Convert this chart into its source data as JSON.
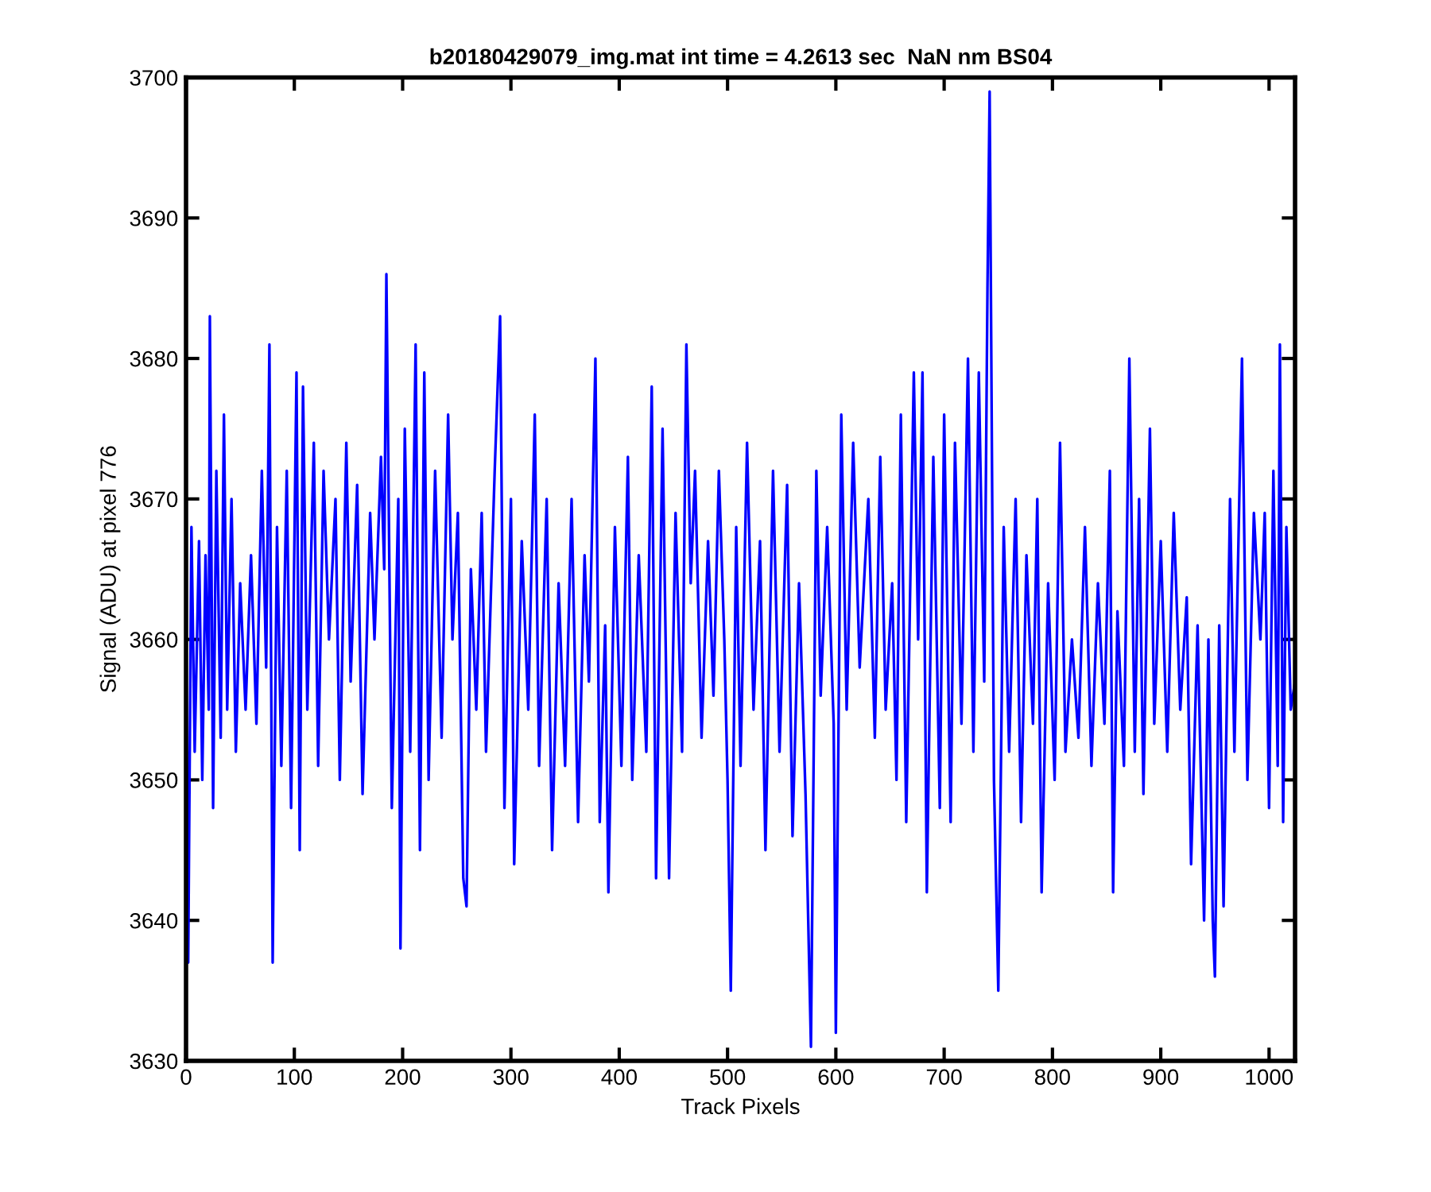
{
  "chart_data": {
    "type": "line",
    "title": "b20180429079_img.mat int time = 4.2613 sec  NaN nm BS04",
    "xlabel": "Track Pixels",
    "ylabel": "Signal (ADU) at pixel 776",
    "xlim": [
      0,
      1024
    ],
    "ylim": [
      3630,
      3700
    ],
    "xticks": [
      0,
      100,
      200,
      300,
      400,
      500,
      600,
      700,
      800,
      900,
      1000
    ],
    "yticks": [
      3630,
      3640,
      3650,
      3660,
      3670,
      3680,
      3690,
      3700
    ],
    "marker": "none",
    "line_style": "solid",
    "series": [
      {
        "color": "#0000ff",
        "x": [
          0,
          2,
          5,
          8,
          12,
          15,
          18,
          21,
          22,
          25,
          28,
          32,
          35,
          38,
          42,
          46,
          50,
          55,
          60,
          65,
          70,
          74,
          77,
          80,
          84,
          88,
          93,
          97,
          102,
          105,
          108,
          112,
          118,
          122,
          127,
          132,
          138,
          142,
          148,
          152,
          158,
          163,
          170,
          174,
          180,
          183,
          185,
          190,
          196,
          198,
          202,
          207,
          212,
          216,
          220,
          224,
          230,
          236,
          242,
          246,
          251,
          256,
          259,
          263,
          268,
          273,
          277,
          285,
          290,
          294,
          300,
          303,
          310,
          316,
          322,
          326,
          333,
          338,
          344,
          350,
          356,
          362,
          368,
          372,
          378,
          382,
          387,
          390,
          396,
          402,
          408,
          412,
          418,
          425,
          430,
          434,
          440,
          446,
          452,
          458,
          462,
          466,
          470,
          476,
          482,
          487,
          492,
          497,
          500,
          503,
          508,
          512,
          518,
          524,
          530,
          535,
          542,
          548,
          555,
          560,
          566,
          572,
          577,
          582,
          586,
          592,
          598,
          600,
          605,
          610,
          616,
          622,
          630,
          636,
          641,
          646,
          652,
          656,
          660,
          665,
          672,
          676,
          680,
          684,
          690,
          696,
          700,
          706,
          710,
          716,
          722,
          727,
          732,
          737,
          740,
          742,
          746,
          750,
          755,
          760,
          766,
          771,
          776,
          782,
          786,
          790,
          796,
          802,
          807,
          812,
          818,
          824,
          830,
          836,
          842,
          848,
          853,
          856,
          860,
          866,
          871,
          876,
          880,
          884,
          890,
          894,
          900,
          906,
          912,
          918,
          924,
          928,
          934,
          940,
          944,
          948,
          950,
          954,
          958,
          964,
          968,
          975,
          980,
          986,
          992,
          996,
          1000,
          1004,
          1008,
          1010,
          1013,
          1016,
          1020,
          1024
        ],
        "values": [
          3660,
          3637,
          3668,
          3652,
          3667,
          3650,
          3666,
          3655,
          3683,
          3648,
          3672,
          3653,
          3676,
          3655,
          3670,
          3652,
          3664,
          3655,
          3666,
          3654,
          3672,
          3658,
          3681,
          3637,
          3668,
          3651,
          3672,
          3648,
          3679,
          3645,
          3678,
          3655,
          3674,
          3651,
          3672,
          3660,
          3670,
          3650,
          3674,
          3657,
          3671,
          3649,
          3669,
          3660,
          3673,
          3665,
          3686,
          3648,
          3670,
          3638,
          3675,
          3652,
          3681,
          3645,
          3679,
          3650,
          3672,
          3653,
          3676,
          3660,
          3669,
          3643,
          3641,
          3665,
          3655,
          3669,
          3652,
          3672,
          3683,
          3648,
          3670,
          3644,
          3667,
          3655,
          3676,
          3651,
          3670,
          3645,
          3664,
          3651,
          3670,
          3647,
          3666,
          3657,
          3680,
          3647,
          3661,
          3642,
          3668,
          3651,
          3673,
          3650,
          3666,
          3652,
          3678,
          3643,
          3675,
          3643,
          3669,
          3652,
          3681,
          3664,
          3672,
          3653,
          3667,
          3656,
          3672,
          3660,
          3650,
          3635,
          3668,
          3651,
          3674,
          3655,
          3667,
          3645,
          3672,
          3652,
          3671,
          3646,
          3664,
          3649,
          3631,
          3672,
          3656,
          3668,
          3654,
          3632,
          3676,
          3655,
          3674,
          3658,
          3670,
          3653,
          3673,
          3655,
          3664,
          3650,
          3676,
          3647,
          3679,
          3660,
          3679,
          3642,
          3673,
          3648,
          3676,
          3647,
          3674,
          3654,
          3680,
          3652,
          3679,
          3657,
          3685,
          3699,
          3650,
          3635,
          3668,
          3652,
          3670,
          3647,
          3666,
          3654,
          3670,
          3642,
          3664,
          3650,
          3674,
          3652,
          3660,
          3653,
          3668,
          3651,
          3664,
          3654,
          3672,
          3642,
          3662,
          3651,
          3680,
          3652,
          3670,
          3649,
          3675,
          3654,
          3667,
          3652,
          3669,
          3655,
          3663,
          3644,
          3661,
          3640,
          3660,
          3640,
          3636,
          3661,
          3641,
          3670,
          3652,
          3680,
          3650,
          3669,
          3660,
          3669,
          3648,
          3672,
          3651,
          3681,
          3647,
          3668,
          3655,
          3657
        ]
      }
    ]
  }
}
